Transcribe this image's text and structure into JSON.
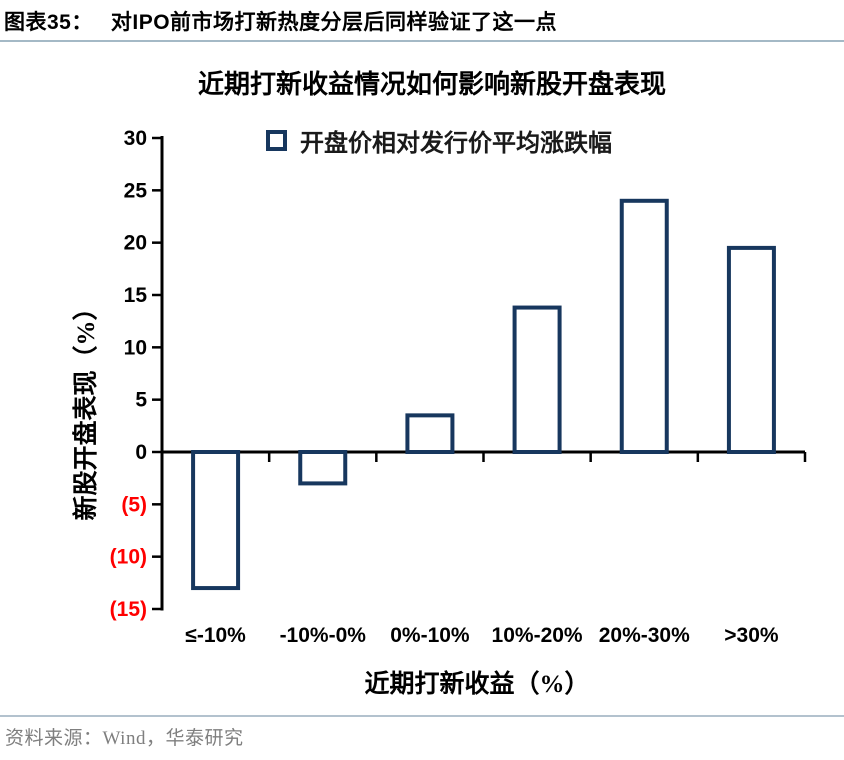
{
  "figure": {
    "label": "图表35：",
    "title": "对IPO前市场打新热度分层后同样验证了这一点"
  },
  "chart_data": {
    "type": "bar",
    "title": "近期打新收益情况如何影响新股开盘表现",
    "legend": [
      "开盘价相对发行价平均涨跌幅"
    ],
    "legend_position": "top",
    "categories": [
      "≤-10%",
      "-10%-0%",
      "0%-10%",
      "10%-20%",
      "20%-30%",
      ">30%"
    ],
    "values": [
      -13,
      -3,
      3.5,
      13.8,
      24,
      19.5
    ],
    "xlabel": "近期打新收益（%）",
    "ylabel": "新股开盘表现（%）",
    "ylim": [
      -15,
      30
    ],
    "yticks": [
      {
        "value": 30,
        "label": "30"
      },
      {
        "value": 25,
        "label": "25"
      },
      {
        "value": 20,
        "label": "20"
      },
      {
        "value": 15,
        "label": "15"
      },
      {
        "value": 10,
        "label": "10"
      },
      {
        "value": 5,
        "label": "5"
      },
      {
        "value": 0,
        "label": "0"
      },
      {
        "value": -5,
        "label": "(5)"
      },
      {
        "value": -10,
        "label": "(10)"
      },
      {
        "value": -15,
        "label": "(15)"
      }
    ],
    "grid": false,
    "colors": {
      "bar_border": "#17375E",
      "bar_fill": "#ffffff",
      "axis": "#000000",
      "positive_tick_label": "#000000",
      "negative_tick_label": "#ff0000"
    }
  },
  "source": {
    "text": "资料来源：Wind，华泰研究"
  }
}
